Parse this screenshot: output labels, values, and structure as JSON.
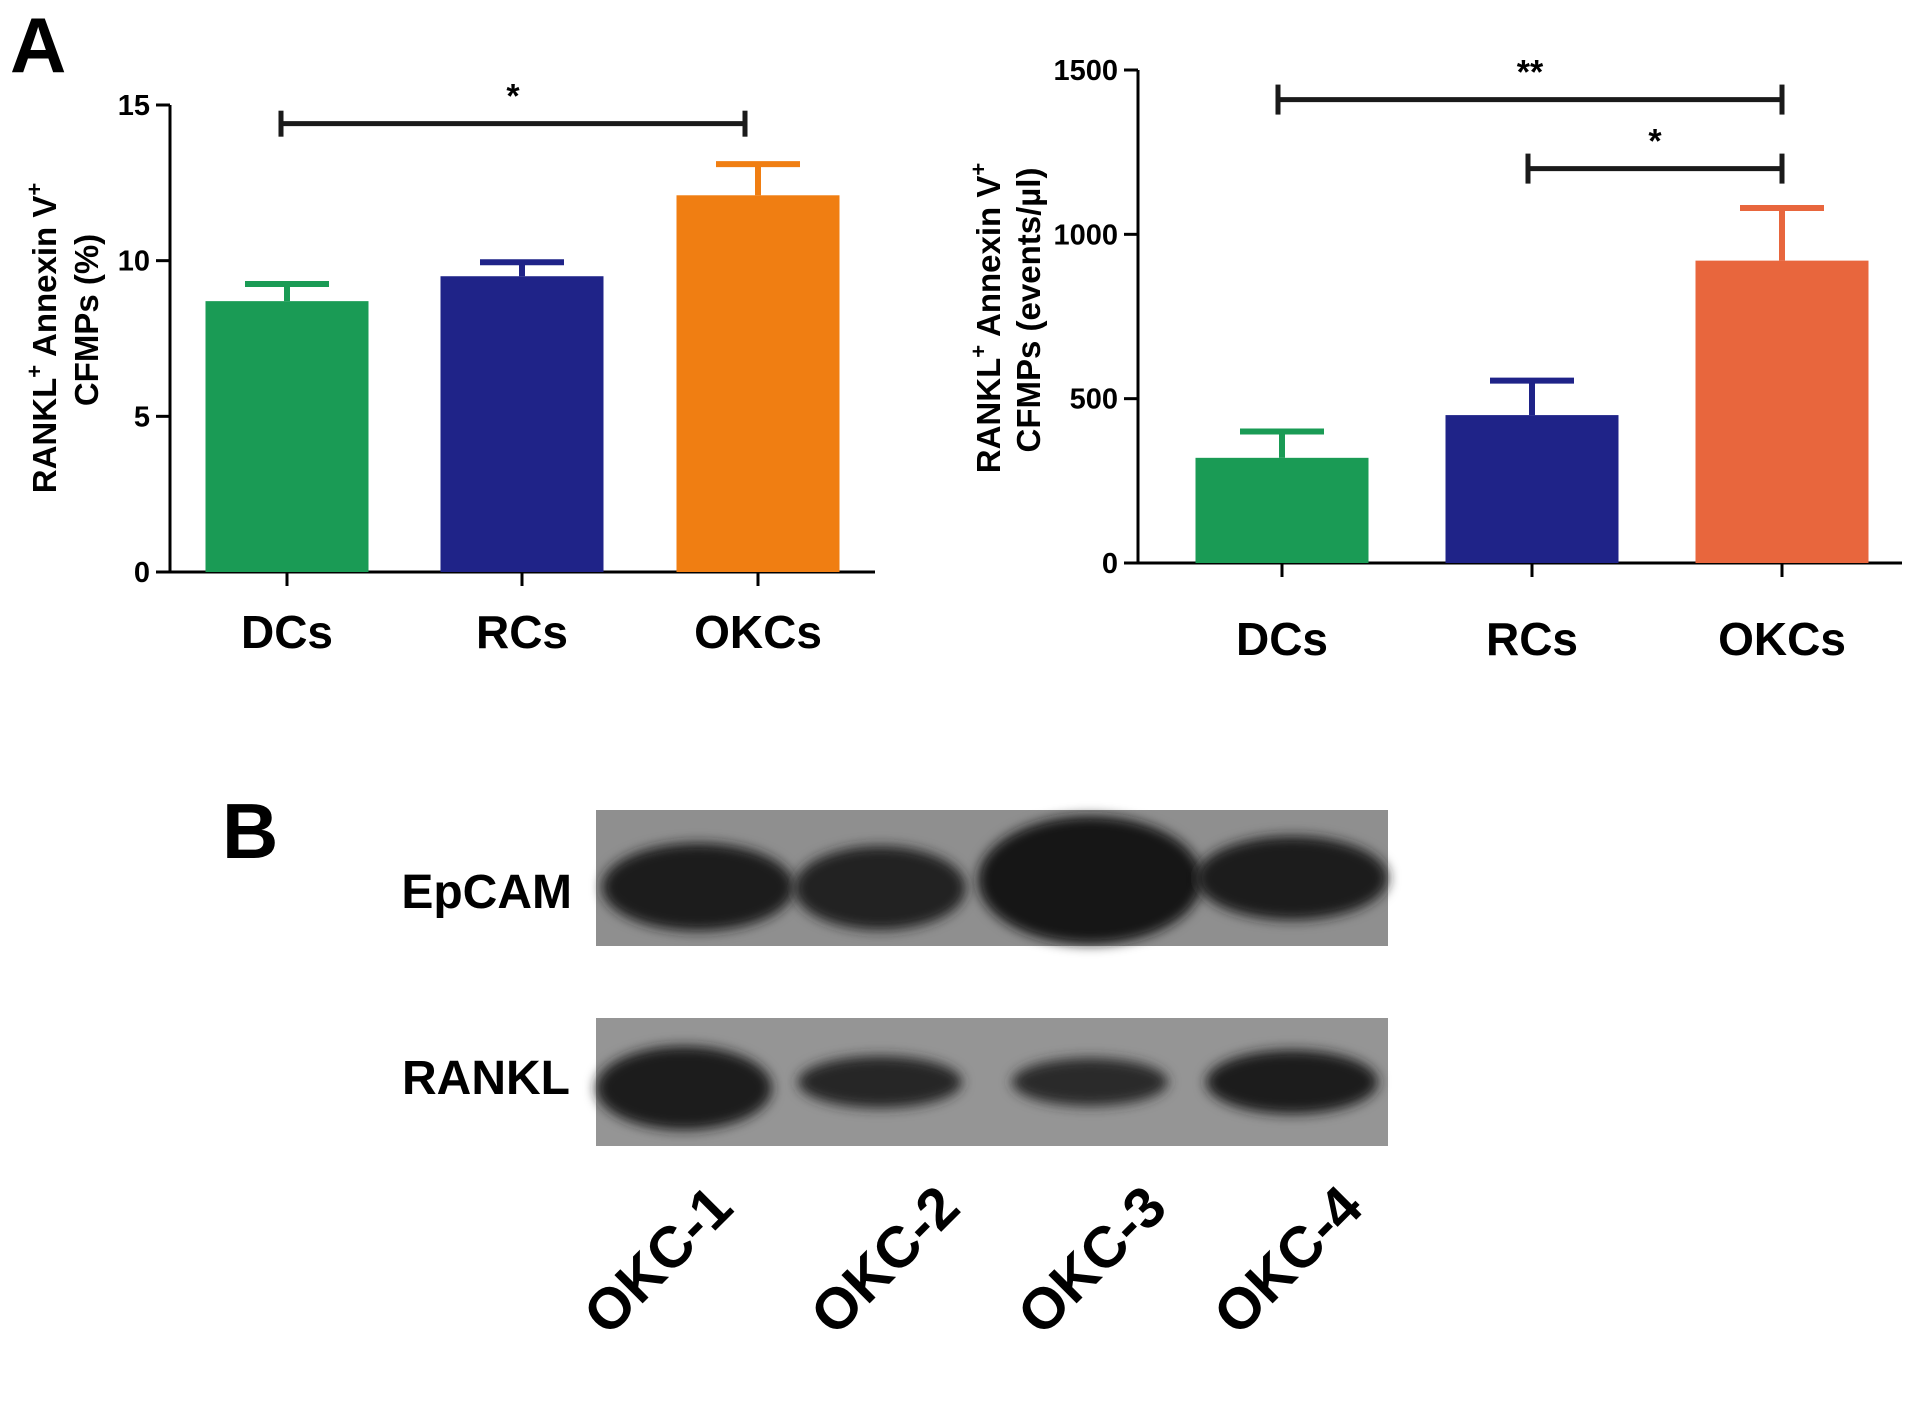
{
  "panels": {
    "a_label": "A",
    "b_label": "B"
  },
  "chart_data": [
    {
      "type": "bar",
      "categories": [
        "DCs",
        "RCs",
        "OKCs"
      ],
      "values": [
        8.7,
        9.5,
        12.1
      ],
      "errors": [
        0.55,
        0.45,
        1.0
      ],
      "colors": [
        "#1a9b55",
        "#1f2388",
        "#f07e12"
      ],
      "ylabel_line1_main": "RANKL",
      "ylabel_line1_sup1": "+",
      "ylabel_line1_mid": " Annexin V",
      "ylabel_line1_sup2": "+",
      "ylabel_line2": "CFMPs (%)",
      "ylim": [
        0,
        15
      ],
      "yticks": [
        "0",
        "5",
        "10",
        "15"
      ],
      "ytick_values": [
        0,
        5,
        10,
        15
      ],
      "significance": [
        {
          "from": 0,
          "to": 2,
          "label": "*",
          "level": 14.4
        }
      ]
    },
    {
      "type": "bar",
      "categories": [
        "DCs",
        "RCs",
        "OKCs"
      ],
      "values": [
        320,
        450,
        920
      ],
      "errors": [
        80,
        105,
        160
      ],
      "colors": [
        "#1a9b55",
        "#1f2388",
        "#e8663d"
      ],
      "ylabel_line1_main": "RANKL",
      "ylabel_line1_sup1": "+",
      "ylabel_line1_mid": " Annexin V",
      "ylabel_line1_sup2": "+",
      "ylabel_line2": "CFMPs (events/µl)",
      "ylim": [
        0,
        1500
      ],
      "yticks": [
        "0",
        "500",
        "1000",
        "1500"
      ],
      "ytick_values": [
        0,
        500,
        1000,
        1500
      ],
      "significance": [
        {
          "from": 0,
          "to": 2,
          "label": "**",
          "level": 1410
        },
        {
          "from": 1,
          "to": 2,
          "label": "*",
          "level": 1200
        }
      ]
    }
  ],
  "blot": {
    "rows": [
      "EpCAM",
      "RANKL"
    ],
    "lanes": [
      "OKC-1",
      "OKC-2",
      "OKC-3",
      "OKC-4"
    ]
  }
}
